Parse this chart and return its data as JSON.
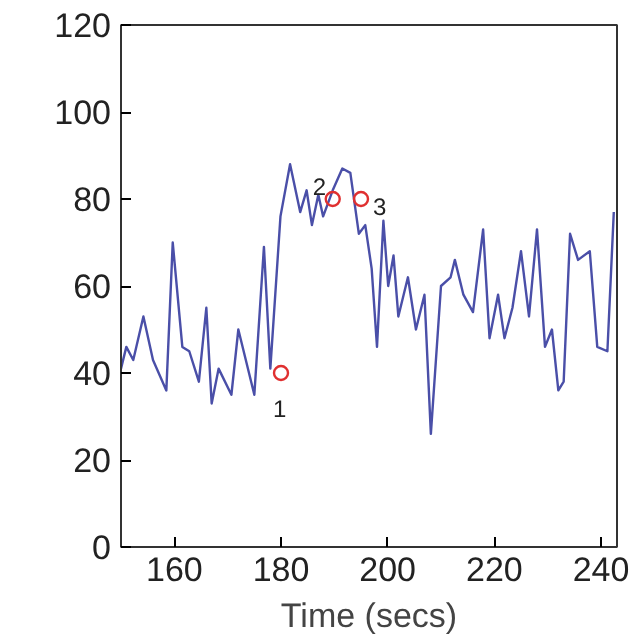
{
  "chart_data": {
    "type": "line",
    "xlabel": "Time (secs)",
    "xlim": [
      150,
      243
    ],
    "xticks": [
      160,
      180,
      200,
      220,
      240
    ],
    "ylim": [
      0,
      120
    ],
    "yticks": [
      0,
      20,
      40,
      60,
      80,
      100,
      120
    ],
    "grid": false,
    "line_style": "solid",
    "series": [
      {
        "color": "#4a4fa8",
        "marker": "none",
        "x": [
          150,
          151,
          152.3,
          154.2,
          156,
          158.5,
          159.7,
          161.5,
          162.8,
          164.6,
          166,
          167,
          168.3,
          170.7,
          172,
          175,
          176.8,
          178,
          179.9,
          181.7,
          183.6,
          184.8,
          185.8,
          187,
          187.9,
          189.7,
          191.5,
          193,
          194.6,
          195.8,
          197,
          198,
          199.2,
          200.1,
          201.1,
          202,
          203.8,
          205.3,
          206.9,
          208.1,
          210,
          211.8,
          212.6,
          214.2,
          216,
          217.9,
          219.1,
          220.7,
          221.9,
          223.4,
          225,
          226.5,
          228,
          229.5,
          230.8,
          232,
          233,
          234.2,
          235.7,
          237.9,
          239.3,
          241.2,
          242.4
        ],
        "values": [
          41,
          46,
          43,
          53,
          43,
          36,
          70,
          46,
          45,
          38,
          55,
          33,
          41,
          35,
          50,
          35,
          69,
          41,
          76,
          88,
          77,
          82,
          74,
          81,
          76,
          82,
          87,
          86,
          72,
          74,
          64,
          46,
          75,
          60,
          67,
          53,
          62,
          50,
          58,
          26,
          60,
          62,
          66,
          58,
          54,
          73,
          48,
          58,
          48,
          55,
          68,
          53,
          73,
          46,
          50,
          36,
          38,
          72,
          66,
          68,
          46,
          45,
          77
        ]
      },
      {
        "type": "scatter",
        "color": "#e03030",
        "marker": "circle",
        "x": [
          180,
          189.7,
          195
        ],
        "values": [
          40,
          80,
          80
        ]
      }
    ],
    "annotations": [
      {
        "text": "1",
        "x": 180,
        "y": 40
      },
      {
        "text": "2",
        "x": 189.7,
        "y": 80
      },
      {
        "text": "3",
        "x": 195,
        "y": 80
      }
    ]
  }
}
